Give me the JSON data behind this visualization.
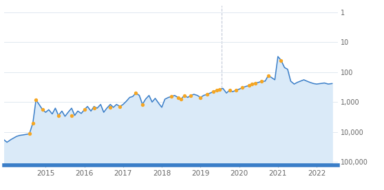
{
  "bg_color": "#ffffff",
  "line_color": "#3a7ec8",
  "fill_color": "#daeaf8",
  "dot_color": "#f5a623",
  "grid_color": "#e0e8f0",
  "tick_label_color": "#666666",
  "bottom_bar_color": "#3a7ec8",
  "vline_color": "#c0c8d8",
  "xlim_start": 2013.92,
  "xlim_end": 2022.55,
  "ylim_bottom": 130000,
  "ylim_top": 0.6,
  "x_ticks": [
    2015,
    2016,
    2017,
    2018,
    2019,
    2020,
    2021,
    2022
  ],
  "y_ticks": [
    1,
    10,
    100,
    1000,
    10000,
    100000
  ],
  "y_tick_labels": [
    "1",
    "10",
    "100",
    "1,000",
    "10,000",
    "100,000"
  ],
  "vline_x": 2019.55,
  "series_x": [
    2013.92,
    2013.96,
    2014.0,
    2014.05,
    2014.1,
    2014.17,
    2014.25,
    2014.33,
    2014.42,
    2014.5,
    2014.58,
    2014.67,
    2014.75,
    2014.83,
    2014.92,
    2015.0,
    2015.08,
    2015.17,
    2015.25,
    2015.33,
    2015.42,
    2015.5,
    2015.58,
    2015.67,
    2015.75,
    2015.83,
    2015.92,
    2016.0,
    2016.08,
    2016.17,
    2016.25,
    2016.33,
    2016.42,
    2016.5,
    2016.58,
    2016.67,
    2016.75,
    2016.83,
    2016.92,
    2017.0,
    2017.08,
    2017.17,
    2017.25,
    2017.33,
    2017.42,
    2017.5,
    2017.58,
    2017.67,
    2017.75,
    2017.83,
    2017.92,
    2018.0,
    2018.08,
    2018.17,
    2018.25,
    2018.33,
    2018.42,
    2018.5,
    2018.58,
    2018.67,
    2018.75,
    2018.83,
    2018.92,
    2019.0,
    2019.08,
    2019.17,
    2019.25,
    2019.33,
    2019.42,
    2019.5,
    2019.58,
    2019.67,
    2019.75,
    2019.83,
    2019.92,
    2020.0,
    2020.08,
    2020.17,
    2020.25,
    2020.33,
    2020.42,
    2020.5,
    2020.58,
    2020.67,
    2020.75,
    2020.83,
    2020.92,
    2021.0,
    2021.08,
    2021.17,
    2021.25,
    2021.33,
    2021.42,
    2021.5,
    2021.58,
    2021.67,
    2021.75,
    2021.83,
    2021.92,
    2022.0,
    2022.1,
    2022.2,
    2022.3,
    2022.4
  ],
  "series_y": [
    18000,
    20000,
    22000,
    20000,
    18000,
    16000,
    14000,
    13000,
    12500,
    12000,
    11500,
    5000,
    850,
    1200,
    1800,
    2200,
    1800,
    2500,
    1600,
    2800,
    2000,
    3000,
    2200,
    1600,
    2800,
    2000,
    2400,
    1800,
    1400,
    2000,
    1400,
    1600,
    1200,
    2200,
    1600,
    1200,
    1500,
    1200,
    1400,
    1200,
    950,
    700,
    650,
    500,
    600,
    1200,
    800,
    600,
    1000,
    750,
    1100,
    1500,
    800,
    700,
    650,
    600,
    700,
    800,
    600,
    700,
    600,
    550,
    600,
    700,
    600,
    550,
    500,
    450,
    400,
    370,
    350,
    500,
    400,
    450,
    400,
    370,
    330,
    300,
    280,
    250,
    230,
    220,
    200,
    200,
    130,
    150,
    180,
    30,
    40,
    70,
    80,
    200,
    250,
    220,
    200,
    180,
    200,
    220,
    240,
    250,
    240,
    230,
    250,
    240
  ],
  "dots_x": [
    2014.58,
    2014.67,
    2014.75,
    2014.92,
    2015.33,
    2015.67,
    2016.0,
    2016.25,
    2016.67,
    2016.92,
    2017.33,
    2017.5,
    2018.25,
    2018.42,
    2018.5,
    2018.58,
    2018.75,
    2019.0,
    2019.17,
    2019.33,
    2019.42,
    2019.5,
    2019.75,
    2019.92,
    2020.08,
    2020.25,
    2020.33,
    2020.42,
    2020.58,
    2020.75,
    2021.08
  ],
  "dots_y": [
    11500,
    5000,
    850,
    1800,
    2800,
    2800,
    1800,
    1600,
    1500,
    1400,
    500,
    1200,
    650,
    700,
    800,
    600,
    600,
    700,
    550,
    450,
    400,
    370,
    400,
    400,
    330,
    280,
    250,
    230,
    200,
    130,
    40
  ]
}
